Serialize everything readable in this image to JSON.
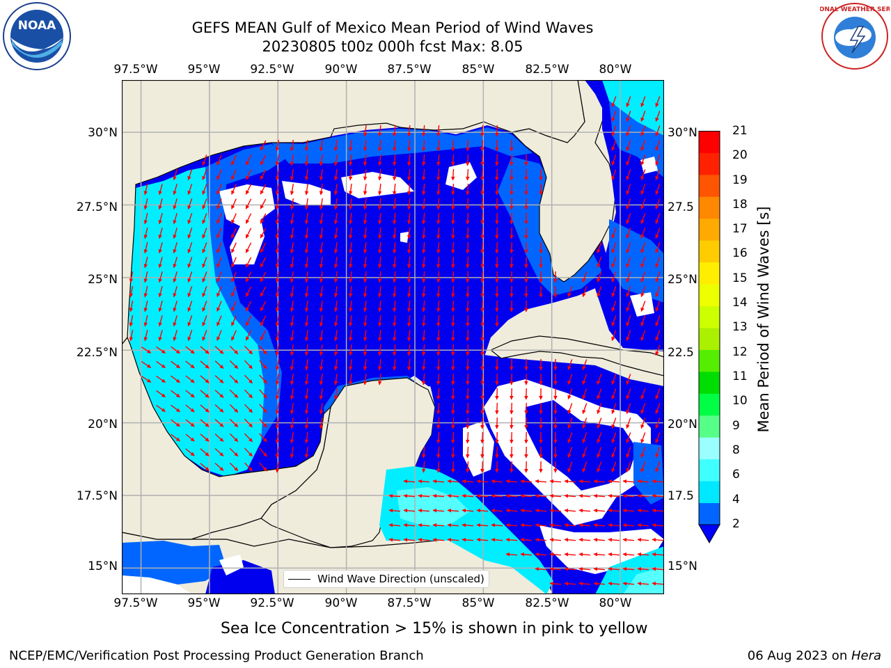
{
  "header": {
    "title_line1": "GEFS MEAN Gulf of Mexico Mean Period of Wind Waves",
    "title_line2": "20230805 t00z 000h fcst   Max: 8.05",
    "left_logo": "noaa-logo",
    "left_logo_text": "NOAA",
    "right_logo": "national-weather-service-logo",
    "right_logo_text": "NATIONAL WEATHER SERVICE"
  },
  "map": {
    "lon_labels": [
      "97.5°W",
      "95°W",
      "92.5°W",
      "90°W",
      "87.5°W",
      "85°W",
      "82.5°W",
      "80°W"
    ],
    "lat_labels_left": [
      "30°N",
      "27.5°N",
      "25°N",
      "22.5°N",
      "20°N",
      "17.5°N",
      "15°N"
    ],
    "lat_labels_right": [
      "30°N",
      "27.5",
      "25°N",
      "22.5",
      "20°N",
      "17.5",
      "15°N"
    ],
    "lon_values": [
      -97.5,
      -95,
      -92.5,
      -90,
      -87.5,
      -85,
      -82.5,
      -80
    ],
    "lat_values": [
      30,
      27.5,
      25,
      22.5,
      20,
      17.5,
      15
    ],
    "lon_range": [
      -98.2,
      -78.4
    ],
    "lat_range": [
      14.1,
      31.8
    ],
    "grid": true,
    "land_color": "#efecdc",
    "arrow_color": "#ff0000",
    "legend_label": "Wind Wave Direction (unscaled)",
    "legend_placement": "bottom-center"
  },
  "colorbar": {
    "label": "Mean Period of Wind Waves [s]",
    "ticks": [
      "2",
      "4",
      "6",
      "8",
      "9",
      "10",
      "11",
      "12",
      "13",
      "14",
      "15",
      "16",
      "17",
      "18",
      "19",
      "20",
      "21"
    ],
    "colors": [
      "#0066ff",
      "#00e8ff",
      "#40ffff",
      "#99ffff",
      "#55ff88",
      "#00ff44",
      "#00dd00",
      "#55ee00",
      "#aaf000",
      "#ccff00",
      "#eeff00",
      "#ffee00",
      "#ffcc00",
      "#ffaa00",
      "#ff8800",
      "#ff5500",
      "#ff2200",
      "#ff0000"
    ],
    "extend_color": "#0000ff"
  },
  "shading_colors": {
    "band_0_2": "#0000ff",
    "band_2_4": "#0066ff",
    "band_4_6": "#00eeff",
    "band_6_8": "#55ffff",
    "below_range": "#ffffff"
  },
  "caption": "Sea Ice Concentration > 15% is shown in pink to yellow",
  "footer": {
    "left": "NCEP/EMC/Verification Post Processing Product Generation Branch",
    "right_date": "06 Aug 2023 on ",
    "right_host": "Hera"
  }
}
